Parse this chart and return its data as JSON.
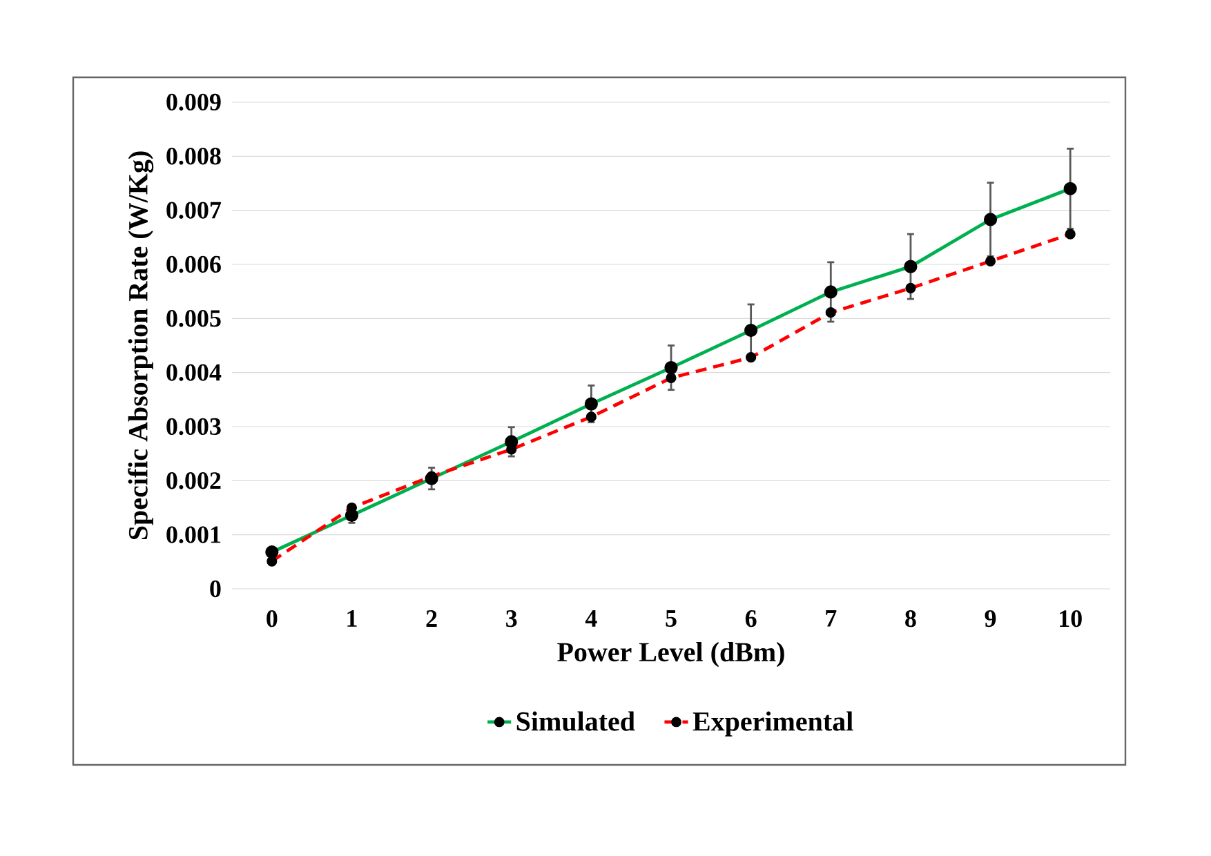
{
  "chart_data": {
    "type": "line",
    "xlabel": "Power Level (dBm)",
    "ylabel": "Specific Absorption Rate (W/Kg)",
    "categories": [
      "0",
      "1",
      "2",
      "3",
      "4",
      "5",
      "6",
      "7",
      "8",
      "9",
      "10"
    ],
    "series": [
      {
        "name": "Simulated",
        "color": "#00b050",
        "line_style": "solid",
        "values": [
          0.00068,
          0.00136,
          0.00204,
          0.00272,
          0.00342,
          0.00409,
          0.00478,
          0.00549,
          0.00596,
          0.00683,
          0.0074
        ],
        "errors": [
          7e-05,
          0.00014,
          0.0002,
          0.00027,
          0.00034,
          0.00041,
          0.00048,
          0.00055,
          0.0006,
          0.00068,
          0.00074
        ]
      },
      {
        "name": "Experimental",
        "color": "#ff0000",
        "line_style": "dashed",
        "values": [
          0.00051,
          0.0015,
          0.00208,
          0.00258,
          0.00318,
          0.0039,
          0.00428,
          0.00511,
          0.00556,
          0.00606,
          0.00656
        ]
      }
    ],
    "ylim": [
      0,
      0.009
    ],
    "yticks": [
      0,
      0.001,
      0.002,
      0.003,
      0.004,
      0.005,
      0.006,
      0.007,
      0.008,
      0.009
    ],
    "grid": "y",
    "legend": "bottom",
    "marker": "circle"
  }
}
